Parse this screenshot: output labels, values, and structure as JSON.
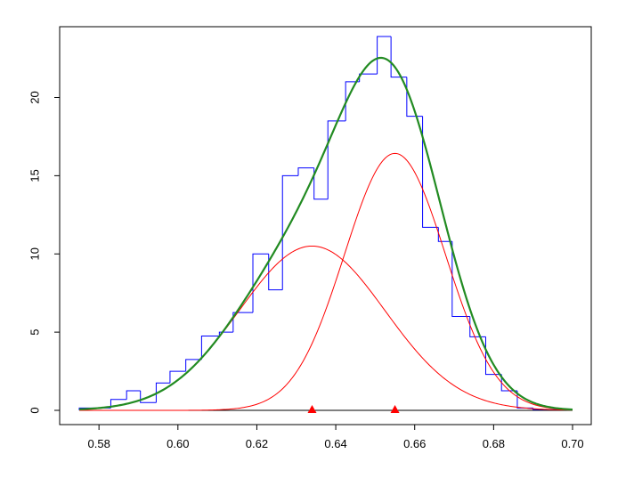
{
  "chart_data": {
    "type": "histogram",
    "title": "",
    "xlabel": "",
    "ylabel": "",
    "xlim": [
      0.575,
      0.7
    ],
    "ylim": [
      0,
      23.5
    ],
    "x_ticks": [
      "0.58",
      "0.60",
      "0.62",
      "0.64",
      "0.66",
      "0.68",
      "0.70"
    ],
    "x_tick_values": [
      0.58,
      0.6,
      0.62,
      0.64,
      0.66,
      0.68,
      0.7
    ],
    "y_ticks": [
      "0",
      "5",
      "10",
      "15",
      "20"
    ],
    "y_tick_values": [
      0,
      5,
      10,
      15,
      20
    ],
    "grid": false,
    "legend": "none",
    "colors": {
      "histogram": "#0000ff",
      "mixture_density": "#228b22",
      "component_density": "#ff0000",
      "component_mean_marker": "#ff0000",
      "baseline": "#000000"
    },
    "histogram": {
      "bin_edges": [
        0.575,
        0.583,
        0.587,
        0.5905,
        0.5945,
        0.598,
        0.602,
        0.606,
        0.6105,
        0.614,
        0.619,
        0.623,
        0.6265,
        0.6305,
        0.6345,
        0.638,
        0.6425,
        0.646,
        0.6505,
        0.654,
        0.658,
        0.662,
        0.666,
        0.6695,
        0.674,
        0.678,
        0.682,
        0.686,
        0.69,
        0.6995
      ],
      "density": [
        0.15,
        0.7,
        1.25,
        0.5,
        1.75,
        2.5,
        3.25,
        4.75,
        5.0,
        6.25,
        10.0,
        7.7,
        15.0,
        15.5,
        13.5,
        18.5,
        21.0,
        21.5,
        23.9,
        21.3,
        18.8,
        11.7,
        10.8,
        6.0,
        4.7,
        2.3,
        1.25,
        0.15,
        0.05
      ]
    },
    "components": [
      {
        "mean": 0.634,
        "sd": 0.0185,
        "weight": 0.487
      },
      {
        "mean": 0.655,
        "sd": 0.0128,
        "weight": 0.527
      }
    ],
    "component_means": [
      0.634,
      0.655
    ],
    "density_range": [
      0.575,
      0.7
    ]
  }
}
